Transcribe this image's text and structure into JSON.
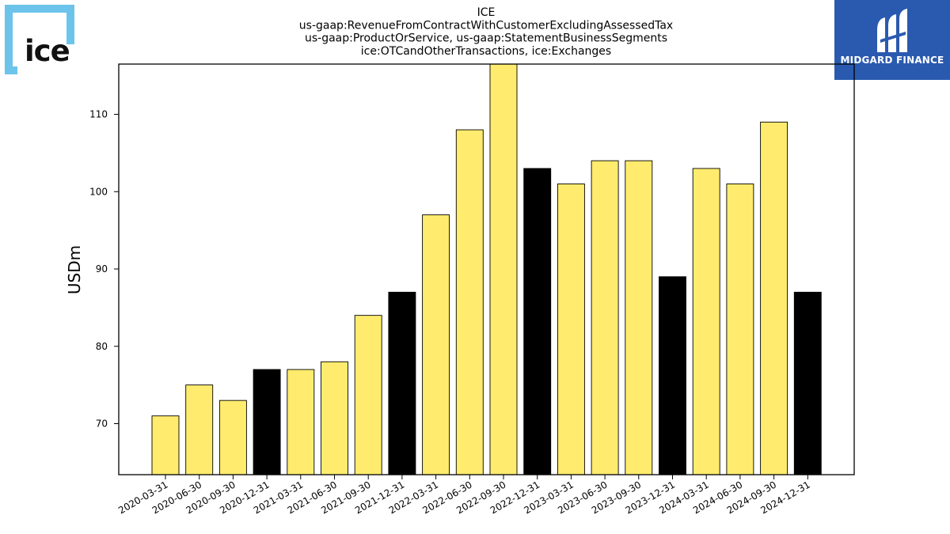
{
  "logos": {
    "left_text": "ice",
    "right_text": "MIDGARD FINANCE",
    "left_color": "#6cc4ea",
    "right_bg": "#2a5ab0"
  },
  "chart_data": {
    "type": "bar",
    "title_lines": [
      "ICE",
      "us-gaap:RevenueFromContractWithCustomerExcludingAssessedTax",
      "us-gaap:ProductOrService, us-gaap:StatementBusinessSegments",
      "ice:OTCandOtherTransactions, ice:Exchanges"
    ],
    "ylabel": "USDm",
    "xlabel": "",
    "ylim": [
      63.4,
      116.5
    ],
    "yticks": [
      70,
      80,
      90,
      100,
      110
    ],
    "categories": [
      "2020-03-31",
      "2020-06-30",
      "2020-09-30",
      "2020-12-31",
      "2021-03-31",
      "2021-06-30",
      "2021-09-30",
      "2021-12-31",
      "2022-03-31",
      "2022-06-30",
      "2022-09-30",
      "2022-12-31",
      "2023-03-31",
      "2023-06-30",
      "2023-09-30",
      "2023-12-31",
      "2024-03-31",
      "2024-06-30",
      "2024-09-30",
      "2024-12-31"
    ],
    "values": [
      71,
      75,
      73,
      77,
      77,
      78,
      84,
      87,
      97,
      108,
      117,
      103,
      101,
      104,
      104,
      89,
      103,
      101,
      109,
      87
    ],
    "highlight": [
      false,
      false,
      false,
      true,
      false,
      false,
      false,
      true,
      false,
      false,
      false,
      true,
      false,
      false,
      false,
      true,
      false,
      false,
      false,
      true
    ],
    "colors": {
      "bar": "#ffec6e",
      "highlight": "#000000",
      "edge": "#000000"
    },
    "grid": false,
    "legend": "none"
  }
}
